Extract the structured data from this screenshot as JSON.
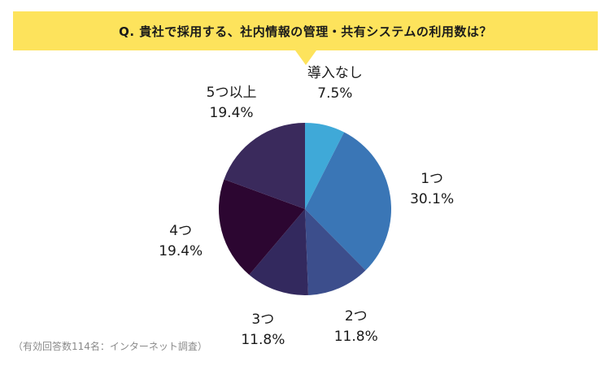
{
  "header": {
    "question": "Q. 貴社で採用する、社内情報の管理・共有システムの利用数は？"
  },
  "footnote": "（有効回答数114名：インターネット調査）",
  "chart_data": {
    "type": "pie",
    "title": "Q. 貴社で採用する、社内情報の管理・共有システムの利用数は？",
    "start_angle_deg": 0,
    "direction": "clockwise",
    "slices": [
      {
        "label": "導入なし",
        "value": 7.5,
        "value_label": "7.5%",
        "color": "#3fa9d8"
      },
      {
        "label": "1つ",
        "value": 30.1,
        "value_label": "30.1%",
        "color": "#3a76b6"
      },
      {
        "label": "2つ",
        "value": 11.8,
        "value_label": "11.8%",
        "color": "#3c4e8c"
      },
      {
        "label": "3つ",
        "value": 11.8,
        "value_label": "11.8%",
        "color": "#33295e"
      },
      {
        "label": "4つ",
        "value": 19.4,
        "value_label": "19.4%",
        "color": "#2c0631"
      },
      {
        "label": "5つ以上",
        "value": 19.4,
        "value_label": "19.4%",
        "color": "#3a2a5c"
      }
    ]
  }
}
